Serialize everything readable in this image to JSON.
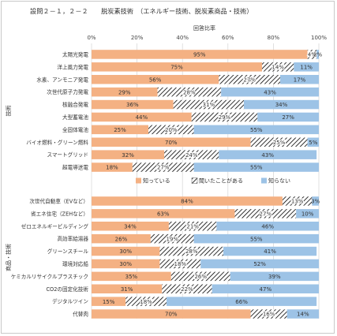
{
  "chart_data": {
    "type": "bar",
    "stacked": "percent",
    "orientation": "horizontal",
    "title": "設問２－１，２－２　　脱炭素技術　（エネルギー技術、脱炭素商品・技術）",
    "axis_title": "回答比率",
    "x_ticks": [
      "0%",
      "20%",
      "40%",
      "60%",
      "80%",
      "100%"
    ],
    "xlim": [
      0,
      100
    ],
    "grid": true,
    "legend_position": "middle-right",
    "groups": [
      {
        "label": "技術",
        "categories": [
          "太陽光発電",
          "洋上風力発電",
          "水素、アンモニア発電",
          "次世代原子力発電",
          "核融合発電",
          "大型蓄電池",
          "全固体電池",
          "バイオ燃料・グリーン燃料",
          "スマートグリッド",
          "超電導送電"
        ],
        "know": [
          95,
          75,
          56,
          29,
          36,
          44,
          25,
          70,
          32,
          18
        ],
        "heard": [
          4,
          14,
          27,
          28,
          31,
          29,
          20,
          25,
          24,
          27
        ],
        "dont_know": [
          2,
          11,
          17,
          43,
          34,
          27,
          55,
          5,
          43,
          55
        ]
      },
      {
        "label": "商品・技術",
        "categories": [
          "次世代自動車（EVなど）",
          "省エネ住宅（ZEHなど）",
          "ゼロエネルギービルディング",
          "高効率給湯器",
          "グリーンスチール",
          "環境対応船",
          "ケミカルリサイクルプラスチック",
          "CO2の固定化技術",
          "デジタルツイン",
          "代替肉"
        ],
        "know": [
          84,
          63,
          34,
          26,
          30,
          30,
          35,
          31,
          15,
          70
        ],
        "heard": [
          13,
          27,
          21,
          19,
          28,
          18,
          26,
          22,
          18,
          16
        ],
        "dont_know": [
          3,
          10,
          46,
          55,
          41,
          52,
          39,
          47,
          66,
          14
        ]
      }
    ],
    "series": [
      {
        "key": "know",
        "name": "知っている",
        "color": "#f4b183"
      },
      {
        "key": "heard",
        "name": "聞いたことがある",
        "pattern": "diagonal-hatch"
      },
      {
        "key": "dont_know",
        "name": "知らない",
        "color": "#9dc3e6"
      }
    ]
  }
}
